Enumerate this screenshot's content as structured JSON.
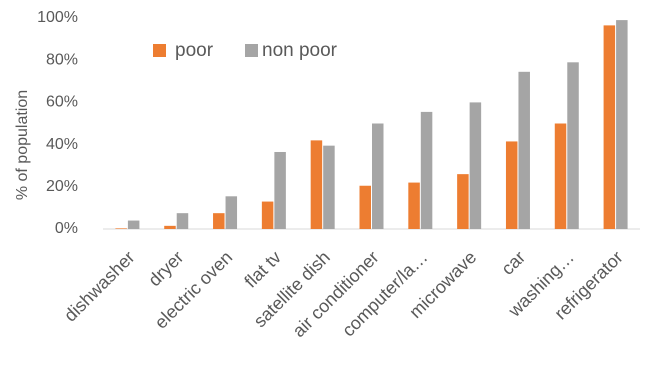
{
  "chart_data": {
    "type": "bar",
    "title": "",
    "xlabel": "",
    "ylabel": "% of population",
    "ylim": [
      0,
      100
    ],
    "yticks": [
      "0%",
      "20%",
      "40%",
      "60%",
      "80%",
      "100%"
    ],
    "grid": false,
    "legend_position": "top-left",
    "categories": [
      "dishwasher",
      "dryer",
      "electric oven",
      "flat tv",
      "satellite dish",
      "air conditioner",
      "computer/la…",
      "microwave",
      "car",
      "washing…",
      "refrigerator"
    ],
    "series": [
      {
        "name": "poor",
        "color": "#ED7D31",
        "values": [
          0.3,
          1.5,
          7.5,
          13,
          42,
          20.5,
          22,
          26,
          41.5,
          50,
          96.5
        ]
      },
      {
        "name": "non poor",
        "color": "#A5A5A5",
        "values": [
          4,
          7.5,
          15.5,
          36.5,
          39.5,
          50,
          55.5,
          60,
          74.5,
          79,
          99
        ]
      }
    ]
  }
}
